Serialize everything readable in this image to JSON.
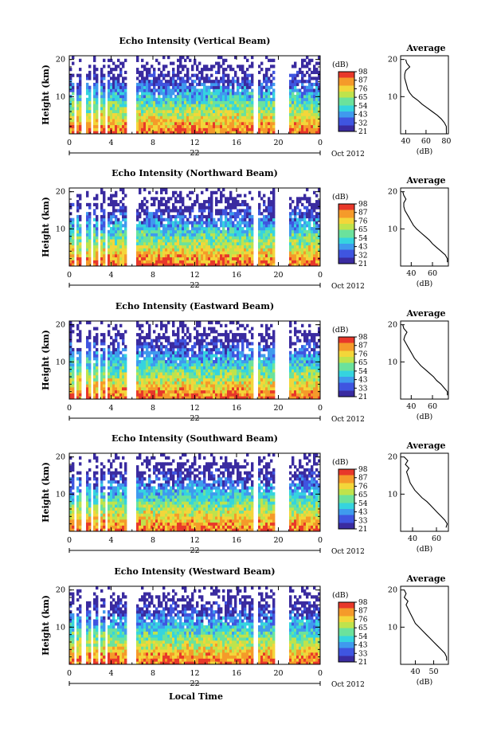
{
  "chart_data": [
    {
      "type": "heatmap",
      "title": "Echo Intensity (Vertical Beam)",
      "ylabel": "Height (km)",
      "xticks": [
        "0",
        "4",
        "8",
        "12",
        "16",
        "20",
        "0"
      ],
      "yticks": [
        "20",
        "10"
      ],
      "date_label": "22",
      "date_suffix": "Oct 2012",
      "colorbar": {
        "unit": "(dB)",
        "ticks": [
          "98",
          "87",
          "76",
          "65",
          "54",
          "43",
          "32",
          "21"
        ]
      },
      "profile": {
        "title": "Average",
        "xlabel": "(dB)",
        "xticks": [
          "40",
          "60",
          "80"
        ],
        "yticks": [
          "20",
          "10"
        ],
        "xlim": [
          35,
          82
        ],
        "height_km": [
          1,
          2,
          3,
          4,
          5,
          6,
          7,
          8,
          9,
          10,
          11,
          12,
          13,
          14,
          15,
          16,
          17,
          18,
          19,
          20
        ],
        "values_db": [
          80,
          80,
          78,
          75,
          71,
          66,
          61,
          56,
          52,
          47,
          44,
          42,
          41,
          40,
          39,
          39,
          40,
          44,
          41,
          40
        ]
      }
    },
    {
      "type": "heatmap",
      "title": "Echo Intensity (Northward Beam)",
      "ylabel": "Height (km)",
      "xticks": [
        "0",
        "4",
        "8",
        "12",
        "16",
        "20",
        "0"
      ],
      "yticks": [
        "20",
        "10"
      ],
      "date_label": "22",
      "date_suffix": "Oct 2012",
      "colorbar": {
        "unit": "(dB)",
        "ticks": [
          "98",
          "87",
          "76",
          "65",
          "54",
          "43",
          "32",
          "21"
        ]
      },
      "profile": {
        "title": "Average",
        "xlabel": "(dB)",
        "xticks": [
          "40",
          "60"
        ],
        "yticks": [
          "20",
          "10"
        ],
        "xlim": [
          30,
          75
        ],
        "height_km": [
          1,
          2,
          3,
          4,
          5,
          6,
          7,
          8,
          9,
          10,
          11,
          12,
          13,
          14,
          15,
          16,
          17,
          18,
          19,
          20
        ],
        "values_db": [
          74,
          74,
          72,
          68,
          64,
          60,
          57,
          53,
          49,
          45,
          42,
          40,
          38,
          36,
          34,
          33,
          33,
          35,
          33,
          32
        ]
      }
    },
    {
      "type": "heatmap",
      "title": "Echo Intensity (Eastward Beam)",
      "ylabel": "Height (km)",
      "xticks": [
        "0",
        "4",
        "8",
        "12",
        "16",
        "20",
        "0"
      ],
      "yticks": [
        "20",
        "10"
      ],
      "date_label": "22",
      "date_suffix": "Oct 2012",
      "colorbar": {
        "unit": "(dB)",
        "ticks": [
          "98",
          "87",
          "76",
          "65",
          "54",
          "43",
          "33",
          "21"
        ]
      },
      "profile": {
        "title": "Average",
        "xlabel": "(dB)",
        "xticks": [
          "40",
          "60"
        ],
        "yticks": [
          "20",
          "10"
        ],
        "xlim": [
          30,
          75
        ],
        "height_km": [
          1,
          2,
          3,
          4,
          5,
          6,
          7,
          8,
          9,
          10,
          11,
          12,
          13,
          14,
          15,
          16,
          17,
          18,
          19,
          20
        ],
        "values_db": [
          74,
          74,
          71,
          68,
          64,
          61,
          57,
          53,
          49,
          46,
          43,
          41,
          39,
          37,
          35,
          33,
          34,
          36,
          33,
          32
        ]
      }
    },
    {
      "type": "heatmap",
      "title": "Echo Intensity (Southward Beam)",
      "ylabel": "Height (km)",
      "xticks": [
        "0",
        "4",
        "8",
        "12",
        "16",
        "20",
        "0"
      ],
      "yticks": [
        "20",
        "10"
      ],
      "date_label": "22",
      "date_suffix": "Oct 2012",
      "colorbar": {
        "unit": "(dB)",
        "ticks": [
          "98",
          "87",
          "76",
          "65",
          "54",
          "43",
          "33",
          "21"
        ]
      },
      "profile": {
        "title": "Average",
        "xlabel": "(dB)",
        "xticks": [
          "40",
          "60"
        ],
        "yticks": [
          "20",
          "10"
        ],
        "xlim": [
          30,
          70
        ],
        "height_km": [
          1,
          2,
          3,
          4,
          5,
          6,
          7,
          8,
          9,
          10,
          11,
          12,
          13,
          14,
          15,
          16,
          17,
          18,
          19,
          20
        ],
        "values_db": [
          68,
          69,
          67,
          64,
          61,
          58,
          55,
          52,
          48,
          45,
          42,
          40,
          38,
          37,
          36,
          35,
          37,
          34,
          36,
          33
        ]
      }
    },
    {
      "type": "heatmap",
      "title": "Echo Intensity (Westward Beam)",
      "ylabel": "Height (km)",
      "xticks": [
        "0",
        "4",
        "8",
        "12",
        "16",
        "20",
        "0"
      ],
      "yticks": [
        "20",
        "10"
      ],
      "date_label": "22",
      "date_suffix": "Oct 2012",
      "colorbar": {
        "unit": "(dB)",
        "ticks": [
          "98",
          "87",
          "76",
          "65",
          "54",
          "43",
          "33",
          "21"
        ]
      },
      "profile": {
        "title": "Average",
        "xlabel": "(dB)",
        "xticks": [
          "40",
          "50"
        ],
        "yticks": [
          "20",
          "10"
        ],
        "xlim": [
          32,
          58
        ],
        "height_km": [
          1,
          2,
          3,
          4,
          5,
          6,
          7,
          8,
          9,
          10,
          11,
          12,
          13,
          14,
          15,
          16,
          17,
          18,
          19,
          20
        ],
        "values_db": [
          57,
          57,
          56,
          54,
          52,
          50,
          48,
          46,
          44,
          42,
          40,
          39,
          38,
          37,
          36,
          35,
          36,
          34,
          35,
          34
        ]
      }
    }
  ],
  "xlabel": "Local Time",
  "colormap": [
    "#3a2ba0",
    "#3f55e0",
    "#3f9aee",
    "#35d4df",
    "#6be29c",
    "#bfe34c",
    "#f3d63a",
    "#f59a2a",
    "#e8382a"
  ],
  "heatmap_rows": 26,
  "data_gaps_hours": [
    [
      0.45,
      0.7
    ],
    [
      1.2,
      1.5
    ],
    [
      2.0,
      2.4
    ],
    [
      2.85,
      3.05
    ],
    [
      3.45,
      3.65
    ],
    [
      5.5,
      6.3
    ],
    [
      17.7,
      18.1
    ],
    [
      19.7,
      21.0
    ]
  ]
}
